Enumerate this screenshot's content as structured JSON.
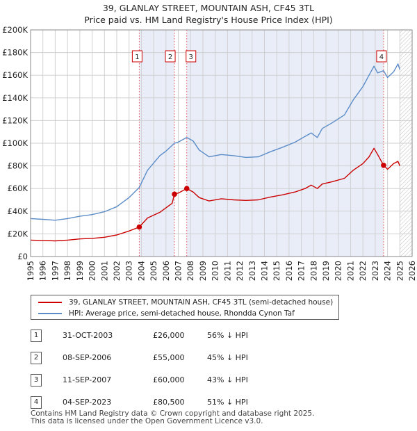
{
  "title_line1": "39, GLANLAY STREET, MOUNTAIN ASH, CF45 3TL",
  "title_line2": "Price paid vs. HM Land Registry's House Price Index (HPI)",
  "chart_data": {
    "type": "line",
    "title": "39, GLANLAY STREET, MOUNTAIN ASH, CF45 3TL — Price paid vs. HM Land Registry's House Price Index (HPI)",
    "xlabel": "",
    "ylabel": "",
    "xlim": [
      1995,
      2026
    ],
    "ylim": [
      0,
      200000
    ],
    "y_ticks": [
      0,
      20000,
      40000,
      60000,
      80000,
      100000,
      120000,
      140000,
      160000,
      180000,
      200000
    ],
    "y_tick_labels": [
      "£0",
      "£20K",
      "£40K",
      "£60K",
      "£80K",
      "£100K",
      "£120K",
      "£140K",
      "£160K",
      "£180K",
      "£200K"
    ],
    "x_ticks": [
      1995,
      1996,
      1997,
      1998,
      1999,
      2000,
      2001,
      2002,
      2003,
      2004,
      2005,
      2006,
      2007,
      2008,
      2009,
      2010,
      2011,
      2012,
      2013,
      2014,
      2015,
      2016,
      2017,
      2018,
      2019,
      2020,
      2021,
      2022,
      2023,
      2024,
      2025,
      2026
    ],
    "grid": true,
    "data_end": 2025.0,
    "series": [
      {
        "name": "39, GLANLAY STREET, MOUNTAIN ASH, CF45 3TL (semi-detached house)",
        "color": "#cc0000",
        "points": [
          [
            1995.0,
            14500
          ],
          [
            1996.0,
            14200
          ],
          [
            1997.0,
            13800
          ],
          [
            1998.0,
            14500
          ],
          [
            1999.0,
            15500
          ],
          [
            2000.0,
            16000
          ],
          [
            2001.0,
            17000
          ],
          [
            2002.0,
            19000
          ],
          [
            2003.0,
            22500
          ],
          [
            2003.83,
            26000
          ],
          [
            2004.5,
            34000
          ],
          [
            2005.5,
            39000
          ],
          [
            2006.5,
            47000
          ],
          [
            2006.69,
            55000
          ],
          [
            2007.0,
            56000
          ],
          [
            2007.69,
            60000
          ],
          [
            2008.2,
            57000
          ],
          [
            2008.7,
            52000
          ],
          [
            2009.5,
            49000
          ],
          [
            2010.5,
            51000
          ],
          [
            2011.5,
            50000
          ],
          [
            2012.5,
            49500
          ],
          [
            2013.5,
            50000
          ],
          [
            2014.5,
            52500
          ],
          [
            2015.5,
            54500
          ],
          [
            2016.5,
            57000
          ],
          [
            2017.3,
            60000
          ],
          [
            2017.8,
            63000
          ],
          [
            2018.3,
            60000
          ],
          [
            2018.7,
            64000
          ],
          [
            2019.5,
            66000
          ],
          [
            2020.5,
            69000
          ],
          [
            2021.2,
            76000
          ],
          [
            2022.0,
            82000
          ],
          [
            2022.5,
            88000
          ],
          [
            2022.9,
            95500
          ],
          [
            2023.2,
            90000
          ],
          [
            2023.68,
            80500
          ],
          [
            2024.0,
            77000
          ],
          [
            2024.5,
            82000
          ],
          [
            2024.85,
            84000
          ],
          [
            2025.0,
            80000
          ]
        ]
      },
      {
        "name": "HPI: Average price, semi-detached house, Rhondda Cynon Taf",
        "color": "#5b8cc8",
        "points": [
          [
            1995.0,
            33500
          ],
          [
            1996.0,
            32800
          ],
          [
            1997.0,
            32000
          ],
          [
            1998.0,
            33500
          ],
          [
            1999.0,
            35500
          ],
          [
            2000.0,
            37000
          ],
          [
            2001.0,
            39500
          ],
          [
            2002.0,
            44000
          ],
          [
            2003.0,
            52000
          ],
          [
            2003.83,
            61000
          ],
          [
            2004.5,
            76000
          ],
          [
            2005.5,
            89000
          ],
          [
            2006.0,
            93000
          ],
          [
            2006.69,
            100000
          ],
          [
            2007.0,
            101000
          ],
          [
            2007.69,
            105000
          ],
          [
            2008.2,
            102000
          ],
          [
            2008.7,
            94000
          ],
          [
            2009.5,
            88000
          ],
          [
            2010.5,
            90000
          ],
          [
            2011.5,
            89000
          ],
          [
            2012.5,
            87500
          ],
          [
            2013.5,
            88000
          ],
          [
            2014.5,
            92500
          ],
          [
            2015.5,
            96500
          ],
          [
            2016.5,
            101000
          ],
          [
            2017.3,
            106000
          ],
          [
            2017.8,
            109000
          ],
          [
            2018.3,
            105000
          ],
          [
            2018.7,
            113000
          ],
          [
            2019.5,
            118000
          ],
          [
            2020.5,
            125000
          ],
          [
            2021.2,
            138000
          ],
          [
            2022.0,
            150000
          ],
          [
            2022.5,
            160000
          ],
          [
            2022.9,
            168000
          ],
          [
            2023.2,
            162000
          ],
          [
            2023.68,
            164000
          ],
          [
            2024.0,
            158000
          ],
          [
            2024.5,
            163000
          ],
          [
            2024.85,
            170000
          ],
          [
            2025.0,
            165000
          ]
        ]
      }
    ],
    "sales": [
      {
        "n": "1",
        "x": 2003.83,
        "price": 26000,
        "date": "31-OCT-2003",
        "price_label": "£26,000",
        "hpi_label": "56% ↓ HPI"
      },
      {
        "n": "2",
        "x": 2006.69,
        "price": 55000,
        "date": "08-SEP-2006",
        "price_label": "£55,000",
        "hpi_label": "45% ↓ HPI"
      },
      {
        "n": "3",
        "x": 2007.69,
        "price": 60000,
        "date": "11-SEP-2007",
        "price_label": "£60,000",
        "hpi_label": "43% ↓ HPI"
      },
      {
        "n": "4",
        "x": 2023.68,
        "price": 80500,
        "date": "04-SEP-2023",
        "price_label": "£80,500",
        "hpi_label": "51% ↓ HPI"
      }
    ],
    "shaded_periods": [
      [
        2003.83,
        2006.69
      ],
      [
        2007.69,
        2023.68
      ]
    ]
  },
  "legend": {
    "property_label": "39, GLANLAY STREET, MOUNTAIN ASH, CF45 3TL (semi-detached house)",
    "hpi_label": "HPI: Average price, semi-detached house, Rhondda Cynon Taf",
    "property_color": "#cc0000",
    "hpi_color": "#5b8cc8"
  },
  "footer_line1": "Contains HM Land Registry data © Crown copyright and database right 2025.",
  "footer_line2": "This data is licensed under the Open Government Licence v3.0."
}
